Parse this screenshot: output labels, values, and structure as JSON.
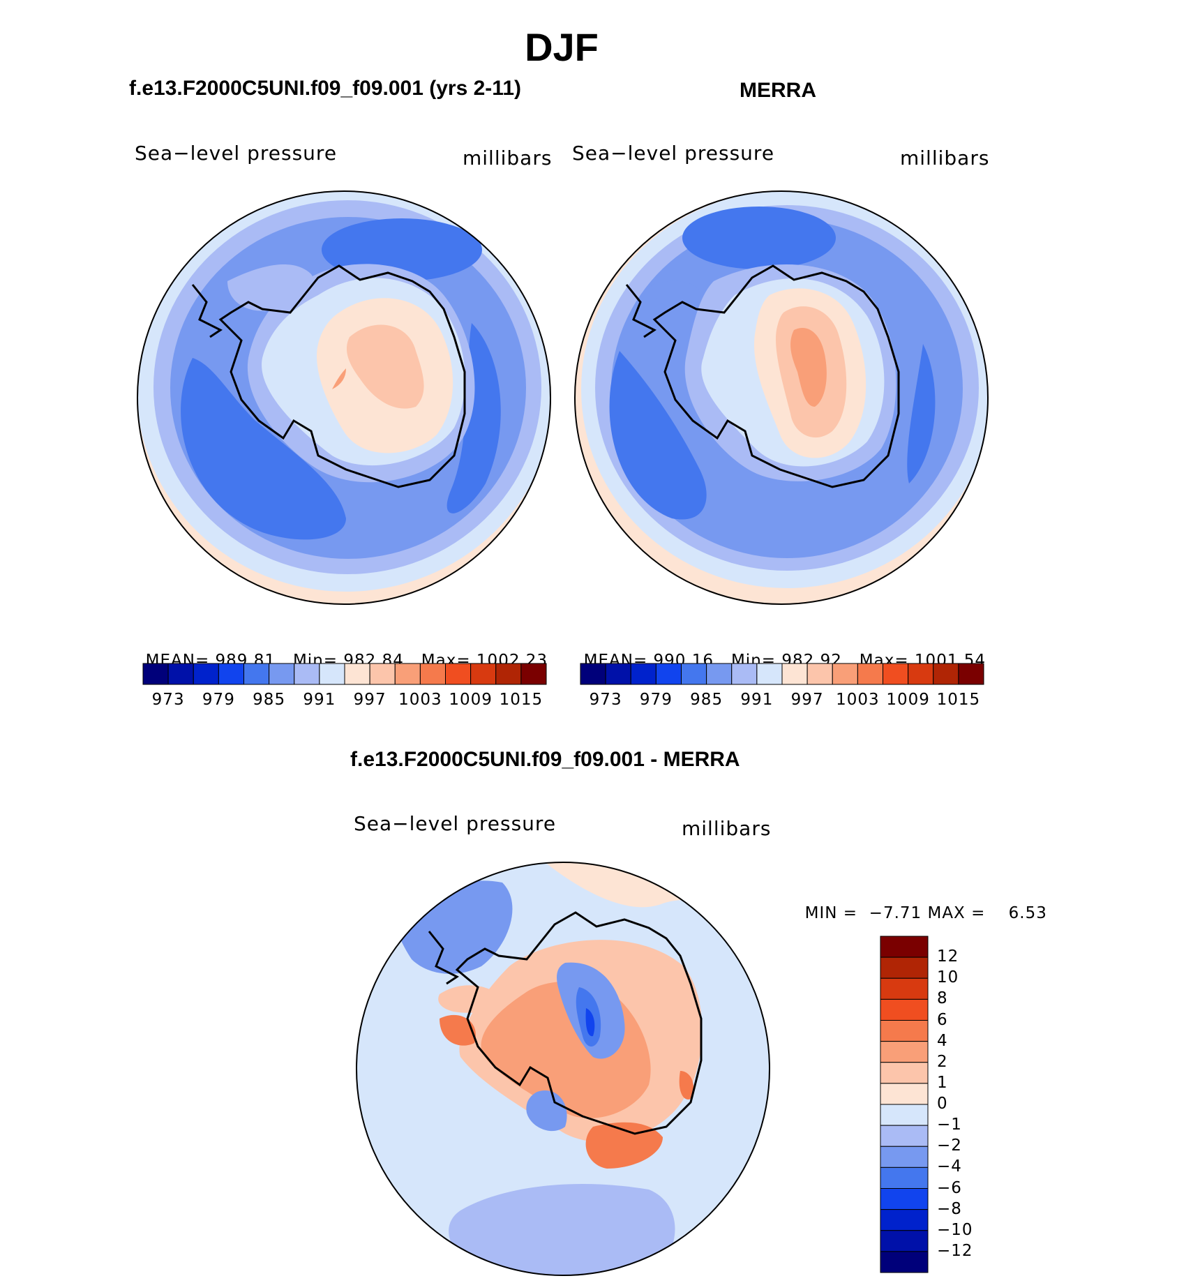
{
  "title": "DJF",
  "panel_left": {
    "case_title": "f.e13.F2000C5UNI.f09_f09.001 (yrs 2-11)",
    "variable": "Sea−level pressure",
    "units": "millibars",
    "stats": {
      "mean_label": "MEAN=",
      "mean": "989.81",
      "min_label": "Min=",
      "min": "982.84",
      "max_label": "Max=",
      "max": "1002.23"
    }
  },
  "panel_right": {
    "case_title": "MERRA",
    "variable": "Sea−level pressure",
    "units": "millibars",
    "stats": {
      "mean_label": "MEAN=",
      "mean": "990.16",
      "min_label": "Min=",
      "min": "982.92",
      "max_label": "Max=",
      "max": "1001.54"
    }
  },
  "panel_diff": {
    "case_title": "f.e13.F2000C5UNI.f09_f09.001 - MERRA",
    "variable": "Sea−level pressure",
    "units": "millibars",
    "min_label": "MIN =",
    "min": "−7.71",
    "max_label": "MAX =",
    "max": "6.53"
  },
  "colorbar_abs": {
    "colors": [
      "#00007a",
      "#0011a9",
      "#0022cc",
      "#1144ee",
      "#4477ee",
      "#7799f0",
      "#aabbf5",
      "#d6e6fb",
      "#fde4d4",
      "#fcc5ab",
      "#f99f78",
      "#f57a4c",
      "#f04e20",
      "#d83a10",
      "#b02505",
      "#7a0000"
    ],
    "labels": [
      "973",
      "979",
      "985",
      "991",
      "997",
      "1003",
      "1009",
      "1015"
    ]
  },
  "colorbar_diff": {
    "colors": [
      "#7a0000",
      "#b02505",
      "#d83a10",
      "#f04e20",
      "#f57a4c",
      "#f99f78",
      "#fcc5ab",
      "#fde4d4",
      "#d6e6fb",
      "#aabbf5",
      "#7799f0",
      "#4477ee",
      "#1144ee",
      "#0022cc",
      "#0011a9",
      "#00007a"
    ],
    "labels": [
      "12",
      "10",
      "8",
      "6",
      "4",
      "2",
      "1",
      "0",
      "−1",
      "−2",
      "−4",
      "−6",
      "−8",
      "−10",
      "−12"
    ]
  }
}
